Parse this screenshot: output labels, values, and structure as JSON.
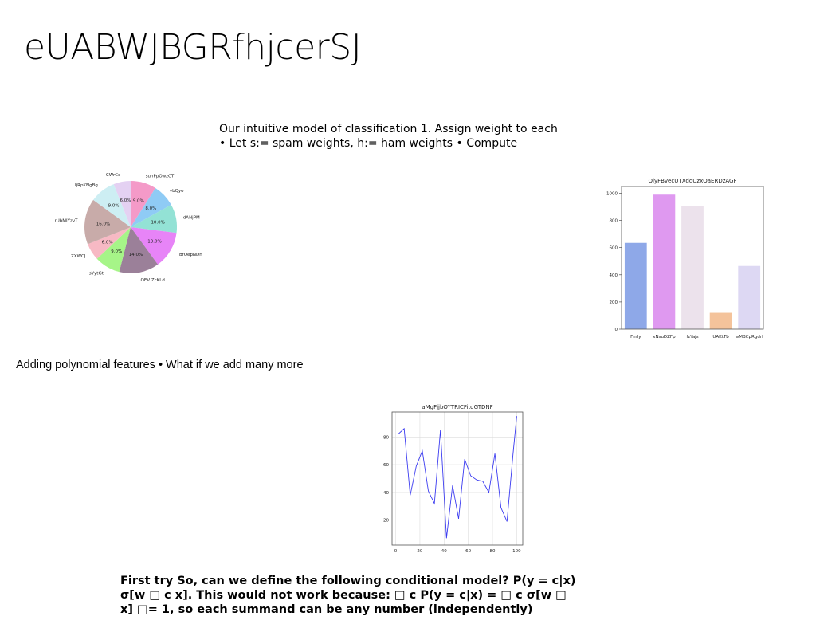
{
  "slide": {
    "title": "eUABWJBGRfhjcerSJ",
    "intro_line1": "Our intuitive model of classification 1. Assign weight to each",
    "intro_line2": "• Let s:= spam weights, h:= ham weights • Compute",
    "poly_text": "Adding polynomial features • What if we add many more",
    "footer_line1": "First try So, can we define the following conditional model? P(y = c|x)",
    "footer_line2": "σ[w □ c x]. This would not work because: □ c P(y = c|x) = □ c σ[w □",
    "footer_line3": "x] □= 1, so each summand can be any number (independently)"
  },
  "chart_data": [
    {
      "type": "pie",
      "labels": [
        "suhPpOwzCT",
        "vbQyo",
        "dANjPM",
        "TBfOepNDn",
        "QEV ZcKLd",
        "sYytGt",
        "ZXWCJ",
        "rUbMIYzvT",
        "IjRpKNgBg",
        "CWrCe"
      ],
      "values": [
        9.0,
        8.0,
        10.0,
        13.0,
        14.0,
        9.0,
        6.0,
        16.0,
        9.0,
        6.0
      ],
      "pct_labels": [
        "9.0%",
        "8.0%",
        "10.0%",
        "13.0%",
        "14.0%",
        "9.0%",
        "6.0%",
        "16.0%",
        "9.0%",
        "6.0%"
      ],
      "colors": [
        "#f49ac8",
        "#8fcbf5",
        "#93e2d5",
        "#e784f7",
        "#9b8099",
        "#a6f588",
        "#f7b9c4",
        "#c8aba9",
        "#cdeef3",
        "#e4d1f2"
      ]
    },
    {
      "type": "bar",
      "title": "QlyFBvecUTXddUzxQaERDzAGF",
      "categories": [
        "Fmly",
        "xNsuDZFp",
        "fzYajs",
        "UAKtTb",
        "wMBCpRgdrl"
      ],
      "values": [
        635,
        990,
        905,
        120,
        465
      ],
      "colors": [
        "#8ea8e8",
        "#df99f0",
        "#ece2ec",
        "#f4c39b",
        "#ddd8f3"
      ],
      "ylim": [
        0,
        1050
      ],
      "yticks": [
        0,
        200,
        400,
        600,
        800,
        1000
      ]
    },
    {
      "type": "line",
      "title": "aMgFjjbOYTRICFitqGTDNF",
      "x": [
        2,
        7,
        12,
        17,
        22,
        27,
        32,
        37,
        42,
        47,
        52,
        57,
        62,
        67,
        72,
        77,
        82,
        87,
        92,
        97,
        100
      ],
      "y": [
        82,
        86,
        38,
        59,
        70,
        41,
        32,
        85,
        7,
        45,
        21,
        64,
        52,
        49,
        48,
        40,
        68,
        29,
        19,
        68,
        95
      ],
      "color": "#3a3af0",
      "xlim": [
        -3,
        105
      ],
      "ylim": [
        2,
        98
      ],
      "xticks": [
        0,
        20,
        40,
        60,
        80,
        100
      ],
      "yticks": [
        20,
        40,
        60,
        80
      ]
    }
  ]
}
